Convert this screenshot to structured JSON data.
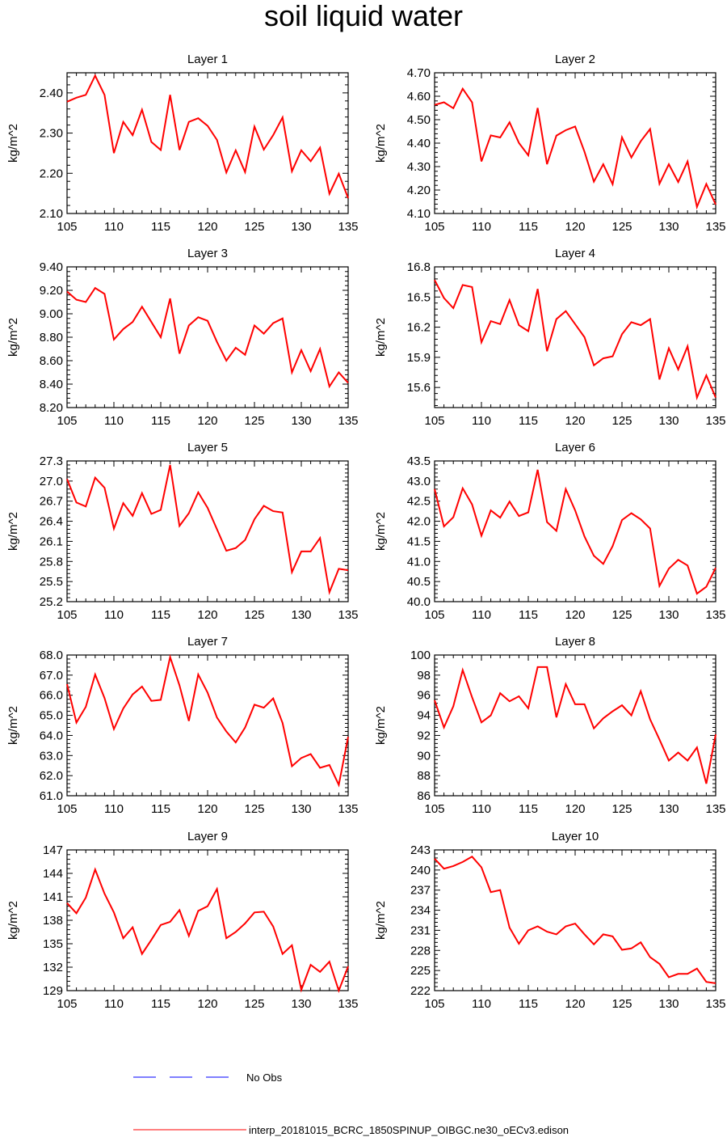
{
  "figure": {
    "title": "soil liquid water"
  },
  "colors": {
    "series": "#ff0000",
    "no_obs": "#0000ff",
    "axis": "#000000"
  },
  "legend": {
    "items": [
      {
        "label": "No Obs",
        "style": "dashed",
        "color": "#0000ff"
      },
      {
        "label": "interp_20181015_BCRC_1850SPINUP_OIBGC.ne30_oECv3.edison",
        "style": "solid",
        "color": "#ff0000"
      }
    ]
  },
  "chart_data": [
    {
      "type": "line",
      "title": "Layer 1",
      "ylabel": "kg/m^2",
      "xlim": [
        105,
        135
      ],
      "ylim": [
        2.1,
        2.45
      ],
      "xticks": [
        105,
        110,
        115,
        120,
        125,
        130,
        135
      ],
      "yticks": [
        "2.10",
        "2.20",
        "2.30",
        "2.40"
      ],
      "x": [
        105,
        106,
        107,
        108,
        109,
        110,
        111,
        112,
        113,
        114,
        115,
        116,
        117,
        118,
        119,
        120,
        121,
        122,
        123,
        124,
        125,
        126,
        127,
        128,
        129,
        130,
        131,
        132,
        133,
        134,
        135
      ],
      "series": [
        {
          "name": "interp_20181015_BCRC_1850SPINUP_OIBGC.ne30_oECv3.edison",
          "values": [
            2.378,
            2.388,
            2.395,
            2.443,
            2.395,
            2.25,
            2.328,
            2.295,
            2.358,
            2.278,
            2.258,
            2.395,
            2.258,
            2.328,
            2.337,
            2.318,
            2.283,
            2.202,
            2.257,
            2.203,
            2.316,
            2.259,
            2.295,
            2.339,
            2.205,
            2.257,
            2.23,
            2.264,
            2.149,
            2.199,
            2.138
          ]
        }
      ]
    },
    {
      "type": "line",
      "title": "Layer 2",
      "ylabel": "kg/m^2",
      "xlim": [
        105,
        135
      ],
      "ylim": [
        4.1,
        4.7
      ],
      "xticks": [
        105,
        110,
        115,
        120,
        125,
        130,
        135
      ],
      "yticks": [
        "4.10",
        "4.20",
        "4.30",
        "4.40",
        "4.50",
        "4.60",
        "4.70"
      ],
      "x": [
        105,
        106,
        107,
        108,
        109,
        110,
        111,
        112,
        113,
        114,
        115,
        116,
        117,
        118,
        119,
        120,
        121,
        122,
        123,
        124,
        125,
        126,
        127,
        128,
        129,
        130,
        131,
        132,
        133,
        134,
        135
      ],
      "series": [
        {
          "name": "interp_20181015_BCRC_1850SPINUP_OIBGC.ne30_oECv3.edison",
          "values": [
            4.563,
            4.574,
            4.549,
            4.632,
            4.574,
            4.322,
            4.433,
            4.424,
            4.489,
            4.401,
            4.348,
            4.55,
            4.31,
            4.432,
            4.455,
            4.471,
            4.363,
            4.236,
            4.31,
            4.225,
            4.425,
            4.339,
            4.408,
            4.46,
            4.227,
            4.31,
            4.234,
            4.322,
            4.128,
            4.226,
            4.138
          ]
        }
      ]
    },
    {
      "type": "line",
      "title": "Layer 3",
      "ylabel": "kg/m^2",
      "xlim": [
        105,
        135
      ],
      "ylim": [
        8.2,
        9.4
      ],
      "xticks": [
        105,
        110,
        115,
        120,
        125,
        130,
        135
      ],
      "yticks": [
        "8.20",
        "8.40",
        "8.60",
        "8.80",
        "9.00",
        "9.20",
        "9.40"
      ],
      "x": [
        105,
        106,
        107,
        108,
        109,
        110,
        111,
        112,
        113,
        114,
        115,
        116,
        117,
        118,
        119,
        120,
        121,
        122,
        123,
        124,
        125,
        126,
        127,
        128,
        129,
        130,
        131,
        132,
        133,
        134,
        135
      ],
      "series": [
        {
          "name": "interp_20181015_BCRC_1850SPINUP_OIBGC.ne30_oECv3.edison",
          "values": [
            9.19,
            9.12,
            9.1,
            9.22,
            9.17,
            8.78,
            8.87,
            8.93,
            9.06,
            8.93,
            8.8,
            9.13,
            8.66,
            8.9,
            8.97,
            8.94,
            8.76,
            8.6,
            8.71,
            8.65,
            8.9,
            8.83,
            8.92,
            8.96,
            8.5,
            8.69,
            8.51,
            8.7,
            8.38,
            8.5,
            8.41
          ]
        }
      ]
    },
    {
      "type": "line",
      "title": "Layer 4",
      "ylabel": "kg/m^2",
      "xlim": [
        105,
        135
      ],
      "ylim": [
        15.4,
        16.8
      ],
      "xticks": [
        105,
        110,
        115,
        120,
        125,
        130,
        135
      ],
      "yticks": [
        "15.6",
        "15.9",
        "16.2",
        "16.5",
        "16.8"
      ],
      "x": [
        105,
        106,
        107,
        108,
        109,
        110,
        111,
        112,
        113,
        114,
        115,
        116,
        117,
        118,
        119,
        120,
        121,
        122,
        123,
        124,
        125,
        126,
        127,
        128,
        129,
        130,
        131,
        132,
        133,
        134,
        135
      ],
      "series": [
        {
          "name": "interp_20181015_BCRC_1850SPINUP_OIBGC.ne30_oECv3.edison",
          "values": [
            16.67,
            16.49,
            16.39,
            16.62,
            16.6,
            16.05,
            16.26,
            16.23,
            16.47,
            16.22,
            16.16,
            16.58,
            15.96,
            16.28,
            16.36,
            16.23,
            16.1,
            15.82,
            15.89,
            15.91,
            16.13,
            16.25,
            16.22,
            16.28,
            15.68,
            15.99,
            15.78,
            16.01,
            15.5,
            15.72,
            15.5
          ]
        }
      ]
    },
    {
      "type": "line",
      "title": "Layer 5",
      "ylabel": "kg/m^2",
      "xlim": [
        105,
        135
      ],
      "ylim": [
        25.2,
        27.3
      ],
      "xticks": [
        105,
        110,
        115,
        120,
        125,
        130,
        135
      ],
      "yticks": [
        "25.2",
        "25.5",
        "25.8",
        "26.1",
        "26.4",
        "26.7",
        "27.0",
        "27.3"
      ],
      "x": [
        105,
        106,
        107,
        108,
        109,
        110,
        111,
        112,
        113,
        114,
        115,
        116,
        117,
        118,
        119,
        120,
        121,
        122,
        123,
        124,
        125,
        126,
        127,
        128,
        129,
        130,
        131,
        132,
        133,
        134,
        135
      ],
      "series": [
        {
          "name": "interp_20181015_BCRC_1850SPINUP_OIBGC.ne30_oECv3.edison",
          "values": [
            27.03,
            26.68,
            26.62,
            27.05,
            26.9,
            26.29,
            26.67,
            26.48,
            26.82,
            26.51,
            26.57,
            27.24,
            26.33,
            26.52,
            26.83,
            26.6,
            26.28,
            25.96,
            26.0,
            26.12,
            26.43,
            26.63,
            26.55,
            26.53,
            25.64,
            25.95,
            25.95,
            26.15,
            25.34,
            25.69,
            25.67
          ]
        }
      ]
    },
    {
      "type": "line",
      "title": "Layer 6",
      "ylabel": "kg/m^2",
      "xlim": [
        105,
        135
      ],
      "ylim": [
        40.0,
        43.5
      ],
      "xticks": [
        105,
        110,
        115,
        120,
        125,
        130,
        135
      ],
      "yticks": [
        "40.0",
        "40.5",
        "41.0",
        "41.5",
        "42.0",
        "42.5",
        "43.0",
        "43.5"
      ],
      "x": [
        105,
        106,
        107,
        108,
        109,
        110,
        111,
        112,
        113,
        114,
        115,
        116,
        117,
        118,
        119,
        120,
        121,
        122,
        123,
        124,
        125,
        126,
        127,
        128,
        129,
        130,
        131,
        132,
        133,
        134,
        135
      ],
      "series": [
        {
          "name": "interp_20181015_BCRC_1850SPINUP_OIBGC.ne30_oECv3.edison",
          "values": [
            42.8,
            41.87,
            42.1,
            42.82,
            42.42,
            41.64,
            42.27,
            42.09,
            42.49,
            42.13,
            42.22,
            43.28,
            41.98,
            41.76,
            42.8,
            42.27,
            41.62,
            41.14,
            40.94,
            41.38,
            42.03,
            42.2,
            42.05,
            41.82,
            40.39,
            40.82,
            41.04,
            40.9,
            40.2,
            40.37,
            40.84
          ]
        }
      ]
    },
    {
      "type": "line",
      "title": "Layer 7",
      "ylabel": "kg/m^2",
      "xlim": [
        105,
        135
      ],
      "ylim": [
        61.0,
        68.0
      ],
      "xticks": [
        105,
        110,
        115,
        120,
        125,
        130,
        135
      ],
      "yticks": [
        "61.0",
        "62.0",
        "63.0",
        "64.0",
        "65.0",
        "66.0",
        "67.0",
        "68.0"
      ],
      "x": [
        105,
        106,
        107,
        108,
        109,
        110,
        111,
        112,
        113,
        114,
        115,
        116,
        117,
        118,
        119,
        120,
        121,
        122,
        123,
        124,
        125,
        126,
        127,
        128,
        129,
        130,
        131,
        132,
        133,
        134,
        135
      ],
      "series": [
        {
          "name": "interp_20181015_BCRC_1850SPINUP_OIBGC.ne30_oECv3.edison",
          "values": [
            66.55,
            64.64,
            65.42,
            67.03,
            65.86,
            64.32,
            65.34,
            66.04,
            66.43,
            65.72,
            65.77,
            67.9,
            66.49,
            64.72,
            67.03,
            66.13,
            64.89,
            64.2,
            63.65,
            64.39,
            65.53,
            65.38,
            65.84,
            64.62,
            62.47,
            62.88,
            63.07,
            62.39,
            62.53,
            61.54,
            63.93
          ]
        }
      ]
    },
    {
      "type": "line",
      "title": "Layer 8",
      "ylabel": "kg/m^2",
      "xlim": [
        105,
        135
      ],
      "ylim": [
        86,
        100
      ],
      "xticks": [
        105,
        110,
        115,
        120,
        125,
        130,
        135
      ],
      "yticks": [
        "86",
        "88",
        "90",
        "92",
        "94",
        "96",
        "98",
        "100"
      ],
      "x": [
        105,
        106,
        107,
        108,
        109,
        110,
        111,
        112,
        113,
        114,
        115,
        116,
        117,
        118,
        119,
        120,
        121,
        122,
        123,
        124,
        125,
        126,
        127,
        128,
        129,
        130,
        131,
        132,
        133,
        134,
        135
      ],
      "series": [
        {
          "name": "interp_20181015_BCRC_1850SPINUP_OIBGC.ne30_oECv3.edison",
          "values": [
            95.5,
            92.8,
            94.9,
            98.5,
            95.8,
            93.3,
            94.0,
            96.2,
            95.4,
            95.9,
            94.7,
            98.8,
            98.8,
            93.8,
            97.1,
            95.1,
            95.1,
            92.7,
            93.7,
            94.4,
            95.0,
            94.0,
            96.4,
            93.6,
            91.6,
            89.5,
            90.3,
            89.5,
            90.8,
            87.2,
            92.1
          ]
        }
      ]
    },
    {
      "type": "line",
      "title": "Layer 9",
      "ylabel": "kg/m^2",
      "xlim": [
        105,
        135
      ],
      "ylim": [
        129,
        147
      ],
      "xticks": [
        105,
        110,
        115,
        120,
        125,
        130,
        135
      ],
      "yticks": [
        "129",
        "132",
        "135",
        "138",
        "141",
        "144",
        "147"
      ],
      "x": [
        105,
        106,
        107,
        108,
        109,
        110,
        111,
        112,
        113,
        114,
        115,
        116,
        117,
        118,
        119,
        120,
        121,
        122,
        123,
        124,
        125,
        126,
        127,
        128,
        129,
        130,
        131,
        132,
        133,
        134,
        135
      ],
      "series": [
        {
          "name": "interp_20181015_BCRC_1850SPINUP_OIBGC.ne30_oECv3.edison",
          "values": [
            140.2,
            138.9,
            140.9,
            144.5,
            141.4,
            139.0,
            135.7,
            137.1,
            133.7,
            135.5,
            137.4,
            137.8,
            139.3,
            136.0,
            139.2,
            139.8,
            142.0,
            135.7,
            136.5,
            137.6,
            139.0,
            139.1,
            137.2,
            133.7,
            134.8,
            129.1,
            132.3,
            131.4,
            132.7,
            129.0,
            132.1
          ]
        }
      ]
    },
    {
      "type": "line",
      "title": "Layer 10",
      "ylabel": "kg/m^2",
      "xlim": [
        105,
        135
      ],
      "ylim": [
        222,
        243
      ],
      "xticks": [
        105,
        110,
        115,
        120,
        125,
        130,
        135
      ],
      "yticks": [
        "222",
        "225",
        "228",
        "231",
        "234",
        "237",
        "240",
        "243"
      ],
      "x": [
        105,
        106,
        107,
        108,
        109,
        110,
        111,
        112,
        113,
        114,
        115,
        116,
        117,
        118,
        119,
        120,
        121,
        122,
        123,
        124,
        125,
        126,
        127,
        128,
        129,
        130,
        131,
        132,
        133,
        134,
        135
      ],
      "series": [
        {
          "name": "interp_20181015_BCRC_1850SPINUP_OIBGC.ne30_oECv3.edison",
          "values": [
            241.7,
            240.2,
            240.6,
            241.2,
            242.0,
            240.4,
            236.7,
            237.0,
            231.4,
            229.0,
            231.0,
            231.6,
            230.8,
            230.4,
            231.6,
            232.0,
            230.4,
            228.9,
            230.4,
            230.1,
            228.1,
            228.3,
            229.2,
            227.0,
            226.0,
            224.0,
            224.5,
            224.5,
            225.3,
            223.3,
            223.1
          ]
        }
      ]
    }
  ]
}
